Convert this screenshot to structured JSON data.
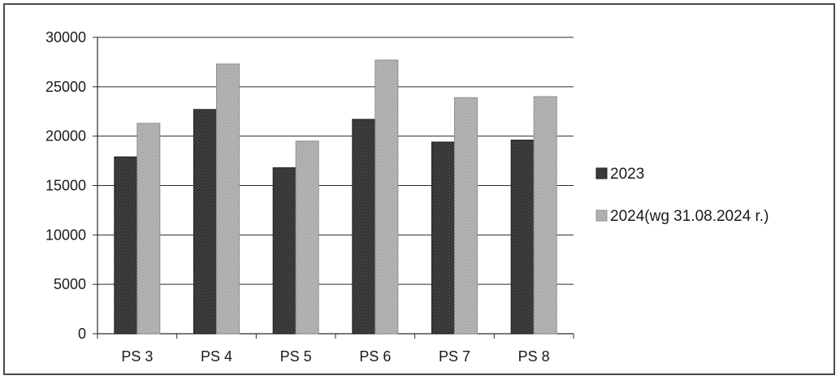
{
  "chart_data": {
    "type": "bar",
    "categories": [
      "PS 3",
      "PS 4",
      "PS 5",
      "PS 6",
      "PS 7",
      "PS 8"
    ],
    "series": [
      {
        "name": "2023",
        "values": [
          17900,
          22700,
          16800,
          21700,
          19400,
          19600
        ],
        "color": "#2f2f2f"
      },
      {
        "name": "2024(wg 31.08.2024 r.)",
        "values": [
          21300,
          27300,
          19500,
          27700,
          23900,
          24000
        ],
        "color": "#b3b3b3"
      }
    ],
    "yticks": [
      "0",
      "5000",
      "10000",
      "15000",
      "20000",
      "25000",
      "30000"
    ],
    "ylim": [
      0,
      30000
    ],
    "grid": true,
    "legend_position": "right"
  }
}
